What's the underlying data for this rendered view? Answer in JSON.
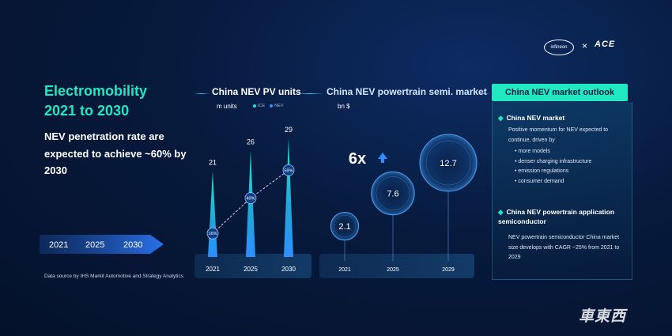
{
  "brand": {
    "logo_left": "infineon",
    "separator": "×",
    "logo_right": "ACE"
  },
  "left": {
    "title_line1": "Electromobility",
    "title_line2": "2021 to 2030",
    "subtitle": "NEV penetration rate are expected to achieve ~60% by 2030",
    "years": [
      "2021",
      "2025",
      "2030"
    ],
    "source": "Data source by IHS Markit Automotive and Strategy Analytics"
  },
  "colors": {
    "accent": "#22e8c2",
    "blue": "#2e8fff",
    "panel": "#0c3a63"
  },
  "chart_data": [
    {
      "type": "bar",
      "title": "China NEV PV units",
      "unit": "m units",
      "legend": [
        "ICE",
        "NEV"
      ],
      "categories": [
        "2021",
        "2025",
        "2030"
      ],
      "series": [
        {
          "name": "ICE",
          "values": [
            21,
            26,
            29
          ]
        }
      ],
      "penetration": [
        {
          "value": 0.16,
          "label": "16%"
        },
        {
          "value": 0.4,
          "label": "40%"
        },
        {
          "value": 0.59,
          "label": "59%"
        }
      ],
      "ylim": [
        0,
        30
      ]
    },
    {
      "type": "scatter",
      "title": "China NEV powertrain semi. market",
      "unit": "bn $",
      "categories": [
        "2021",
        "2025",
        "2029"
      ],
      "values": [
        2.1,
        7.6,
        12.7
      ],
      "labels": [
        "2.1",
        "7.6",
        "12.7"
      ],
      "multiplier": "6x"
    }
  ],
  "outlook": {
    "title": "China NEV market outlook",
    "sections": [
      {
        "heading": "China NEV market",
        "text": "Positive momentum for NEV expected to continue, driven by",
        "items": [
          "more models",
          "denser charging infrastructure",
          "emission regulations",
          "consumer demand"
        ]
      },
      {
        "heading": "China NEV powertrain application semiconductor",
        "text": "NEV powertrain semiconductor China market size develops with CAGR ~25% from 2021 to 2029"
      }
    ]
  },
  "watermark": "車東西"
}
